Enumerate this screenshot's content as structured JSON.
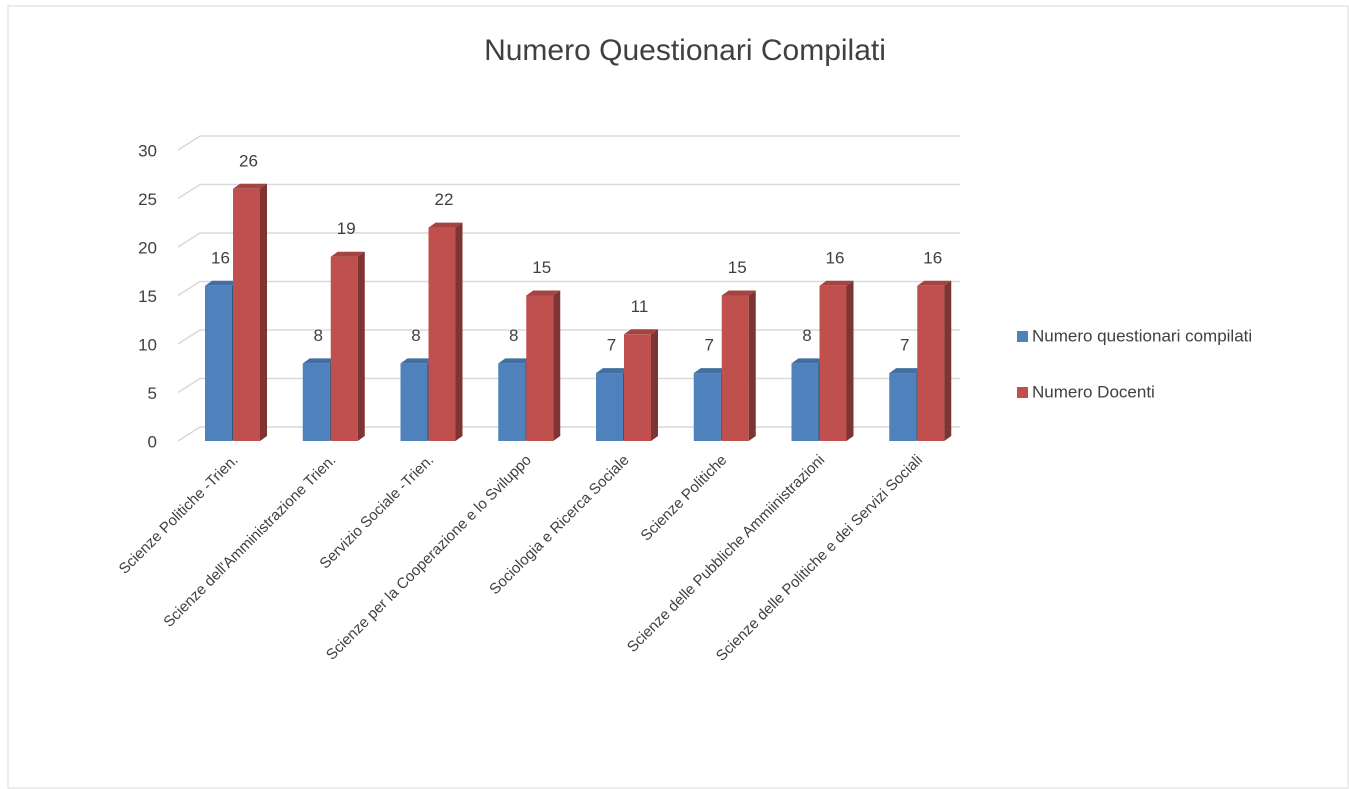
{
  "chart_data": {
    "type": "bar3d",
    "title": "Numero Questionari Compilati",
    "categories": [
      "Scienze Politiche -Trien.",
      "Scienze dell'Amministrazione Trien.",
      "Servizio Sociale -Trien.",
      "Scienze per la Cooperazione e lo Sviluppo",
      "Sociologia e Ricerca Sociale",
      "Scienze Politiche",
      "Scienze delle Pubbliche Ammiinistrazioni",
      "Scienze delle Politiche e dei Servizi Sociali"
    ],
    "series": [
      {
        "name": "Numero questionari compilati",
        "color": "#4f81bd",
        "values": [
          16,
          8,
          8,
          8,
          7,
          7,
          8,
          7
        ]
      },
      {
        "name": "Numero Docenti",
        "color": "#c0504d",
        "values": [
          26,
          19,
          22,
          15,
          11,
          15,
          16,
          16
        ]
      }
    ],
    "ylim": [
      0,
      30
    ],
    "yticks": [
      0,
      5,
      10,
      15,
      20,
      25,
      30
    ],
    "grid": true,
    "legend": "right"
  }
}
